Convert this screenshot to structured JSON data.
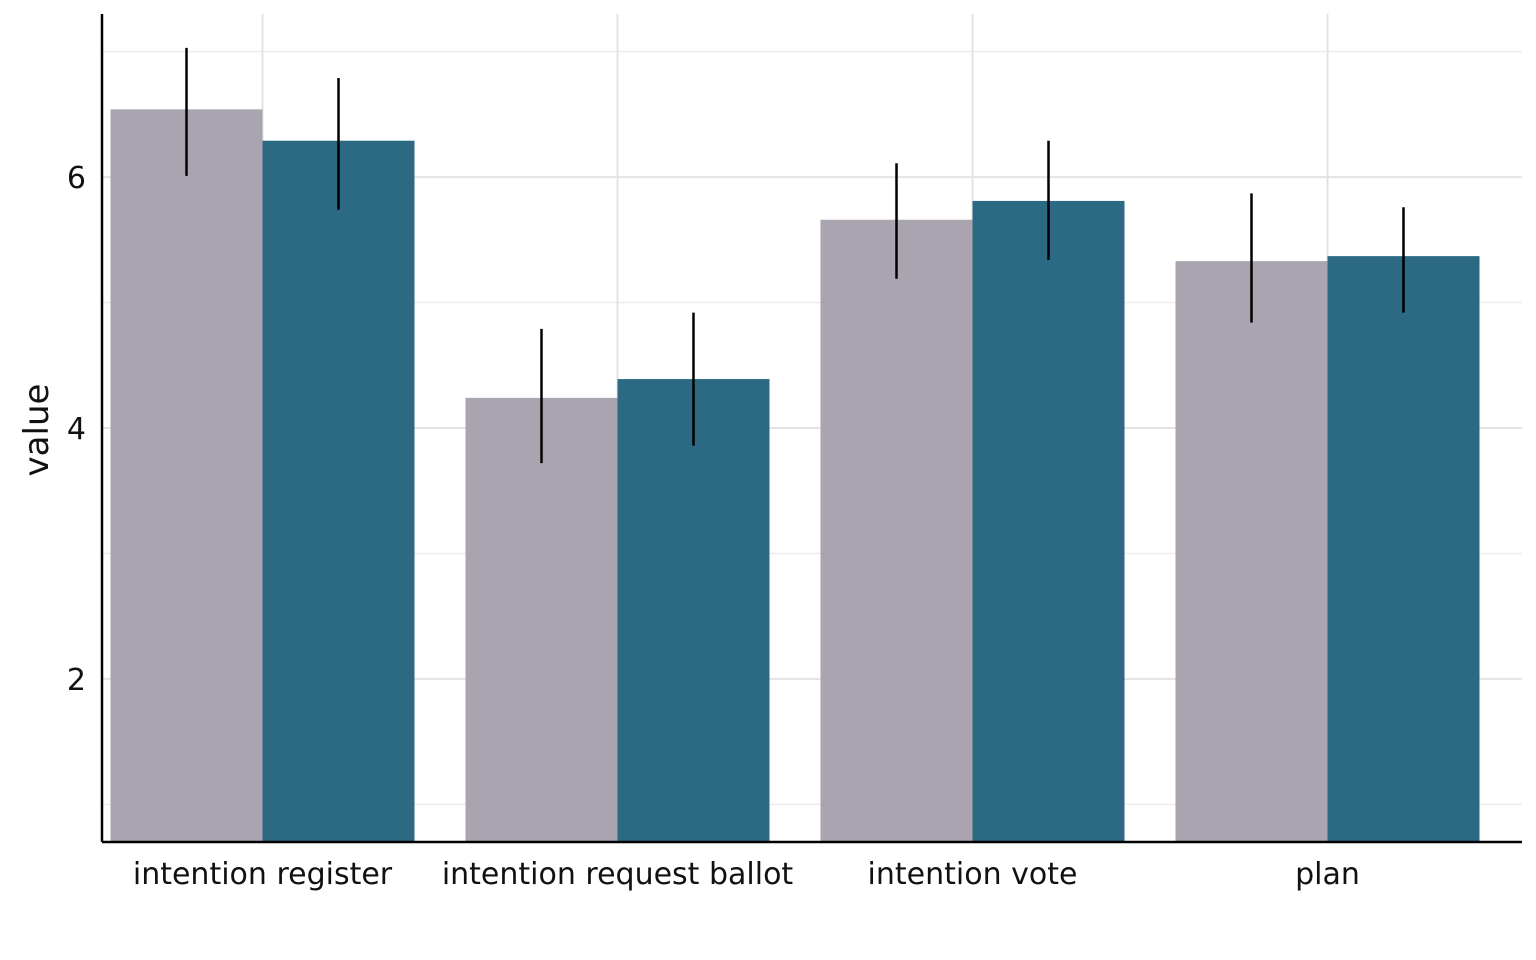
{
  "chart_data": {
    "type": "bar",
    "categories": [
      "intention register",
      "intention request ballot",
      "intention vote",
      "plan"
    ],
    "series": [
      {
        "color": "#a9a4b0",
        "values": [
          6.54,
          4.24,
          5.66,
          5.33
        ],
        "error_low": [
          6.01,
          3.72,
          5.19,
          4.84
        ],
        "error_high": [
          7.03,
          4.79,
          6.11,
          5.87
        ]
      },
      {
        "color": "#2c6982",
        "values": [
          6.29,
          4.39,
          5.81,
          5.37
        ],
        "error_low": [
          5.74,
          3.86,
          5.34,
          4.92
        ],
        "error_high": [
          6.79,
          4.92,
          6.29,
          5.76
        ]
      }
    ],
    "xlabel": "",
    "ylabel": "value",
    "ylim": [
      0.7,
      7.3
    ],
    "yticks": [
      2,
      4,
      6
    ],
    "grid": true
  }
}
